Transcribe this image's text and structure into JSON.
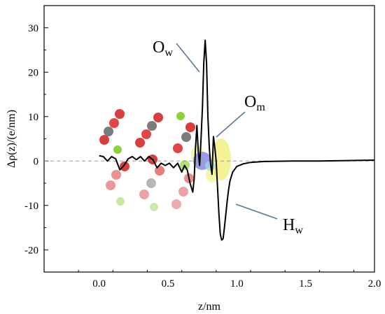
{
  "chart_data": {
    "type": "line",
    "title": "",
    "xlabel": "z/nm",
    "ylabel": "Δρ(z)/(e/nm)",
    "xlim": [
      -0.4,
      2.0
    ],
    "ylim": [
      -25,
      35
    ],
    "xticks": [
      0.0,
      0.5,
      1.0,
      1.5,
      2.0
    ],
    "xtick_labels": [
      "0.0",
      "0.5",
      "1.0",
      "1.5",
      "2.0"
    ],
    "yticks": [
      -20,
      -10,
      0,
      10,
      20,
      30
    ],
    "ytick_labels": [
      "-20",
      "-10",
      "0",
      "10",
      "20",
      "30"
    ],
    "grid": false,
    "reference_line": {
      "y": 0,
      "style": "dashed",
      "color": "#999999"
    },
    "series": [
      {
        "color": "#000000",
        "x": [
          0.0,
          0.03,
          0.06,
          0.09,
          0.12,
          0.15,
          0.18,
          0.21,
          0.24,
          0.27,
          0.3,
          0.33,
          0.36,
          0.39,
          0.42,
          0.45,
          0.48,
          0.51,
          0.54,
          0.57,
          0.6,
          0.62,
          0.64,
          0.66,
          0.68,
          0.69,
          0.7,
          0.71,
          0.72,
          0.73,
          0.74,
          0.75,
          0.76,
          0.77,
          0.78,
          0.79,
          0.8,
          0.81,
          0.82,
          0.83,
          0.84,
          0.85,
          0.86,
          0.87,
          0.88,
          0.89,
          0.9,
          0.91,
          0.92,
          0.93,
          0.94,
          0.95,
          0.97,
          1.0,
          1.05,
          1.1,
          1.2,
          1.4,
          1.6,
          1.8,
          2.0
        ],
        "y": [
          1.2,
          1.0,
          0.0,
          1.0,
          0.5,
          -2.0,
          -1.0,
          0.5,
          1.0,
          0.3,
          1.0,
          0.0,
          1.0,
          0.3,
          -1.5,
          -0.5,
          -1.0,
          -0.5,
          -1.5,
          -0.5,
          -2.5,
          -1.0,
          -2.0,
          -5.0,
          -7.0,
          -4.0,
          3.0,
          8.0,
          2.0,
          -1.0,
          5.0,
          12.0,
          22.0,
          27.2,
          22.0,
          10.0,
          3.0,
          -1.0,
          -3.0,
          5.5,
          3.0,
          0.0,
          -6.0,
          -12.0,
          -16.5,
          -17.8,
          -17.5,
          -15.0,
          -12.0,
          -9.0,
          -6.5,
          -4.5,
          -2.5,
          -1.2,
          -0.6,
          -0.3,
          -0.1,
          0.0,
          0.0,
          0.1,
          0.2
        ]
      }
    ],
    "annotations": [
      {
        "label": "O",
        "subscript": "w",
        "x": 0.75,
        "y": 21.0
      },
      {
        "label": "O",
        "subscript": "m",
        "x": 0.85,
        "y": 5.5
      },
      {
        "label": "H",
        "subscript": "w",
        "x": 0.89,
        "y": -10.0
      }
    ]
  }
}
